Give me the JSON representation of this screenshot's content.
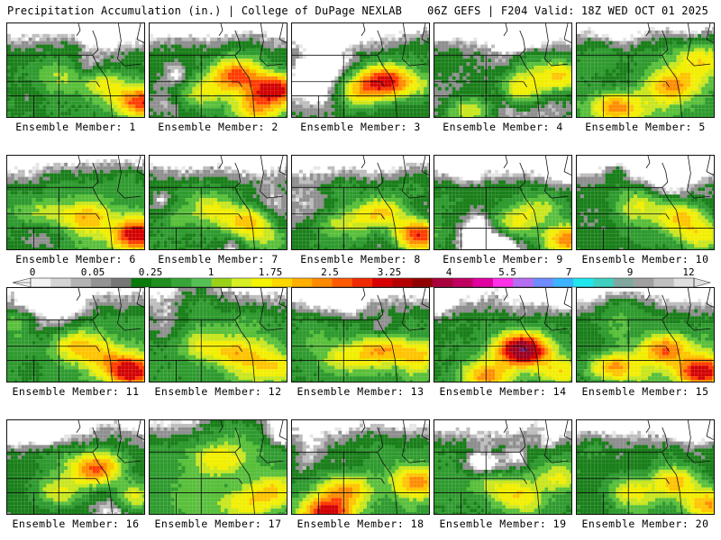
{
  "header": {
    "title": "Precipitation Accumulation (in.) | College of DuPage NEXLAB",
    "run_info": "06Z GEFS | F204 Valid: 18Z WED OCT 01 2025"
  },
  "colorbar": {
    "labels": [
      "0",
      "0.05",
      "0.25",
      "1",
      "1.75",
      "2.5",
      "3.25",
      "4",
      "5.5",
      "7",
      "9",
      "12"
    ],
    "colors": [
      "#f2f2f2",
      "#d4d4d4",
      "#b4b4b4",
      "#949494",
      "#767676",
      "#0a7a0a",
      "#1f8f1f",
      "#37a537",
      "#56c056",
      "#9ad21a",
      "#d8ee24",
      "#f4f400",
      "#ffd700",
      "#ffb000",
      "#ff8a00",
      "#ff5a00",
      "#f02a00",
      "#d80000",
      "#b40000",
      "#900000",
      "#a8003c",
      "#c00060",
      "#e000a0",
      "#ff30e6",
      "#b46ef0",
      "#6e8cff",
      "#3cb4ff",
      "#20e6ee",
      "#40d0c0",
      "#80a8a0",
      "#a0a0a0",
      "#c0c0c0",
      "#e0e0e0"
    ]
  },
  "members": [
    {
      "label": "Ensemble Member: 1"
    },
    {
      "label": "Ensemble Member: 2"
    },
    {
      "label": "Ensemble Member: 3"
    },
    {
      "label": "Ensemble Member: 4"
    },
    {
      "label": "Ensemble Member: 5"
    },
    {
      "label": "Ensemble Member: 6"
    },
    {
      "label": "Ensemble Member: 7"
    },
    {
      "label": "Ensemble Member: 8"
    },
    {
      "label": "Ensemble Member: 9"
    },
    {
      "label": "Ensemble Member: 10"
    },
    {
      "label": "Ensemble Member: 11"
    },
    {
      "label": "Ensemble Member: 12"
    },
    {
      "label": "Ensemble Member: 13"
    },
    {
      "label": "Ensemble Member: 14"
    },
    {
      "label": "Ensemble Member: 15"
    },
    {
      "label": "Ensemble Member: 16"
    },
    {
      "label": "Ensemble Member: 17"
    },
    {
      "label": "Ensemble Member: 18"
    },
    {
      "label": "Ensemble Member: 19"
    },
    {
      "label": "Ensemble Member: 20"
    }
  ]
}
